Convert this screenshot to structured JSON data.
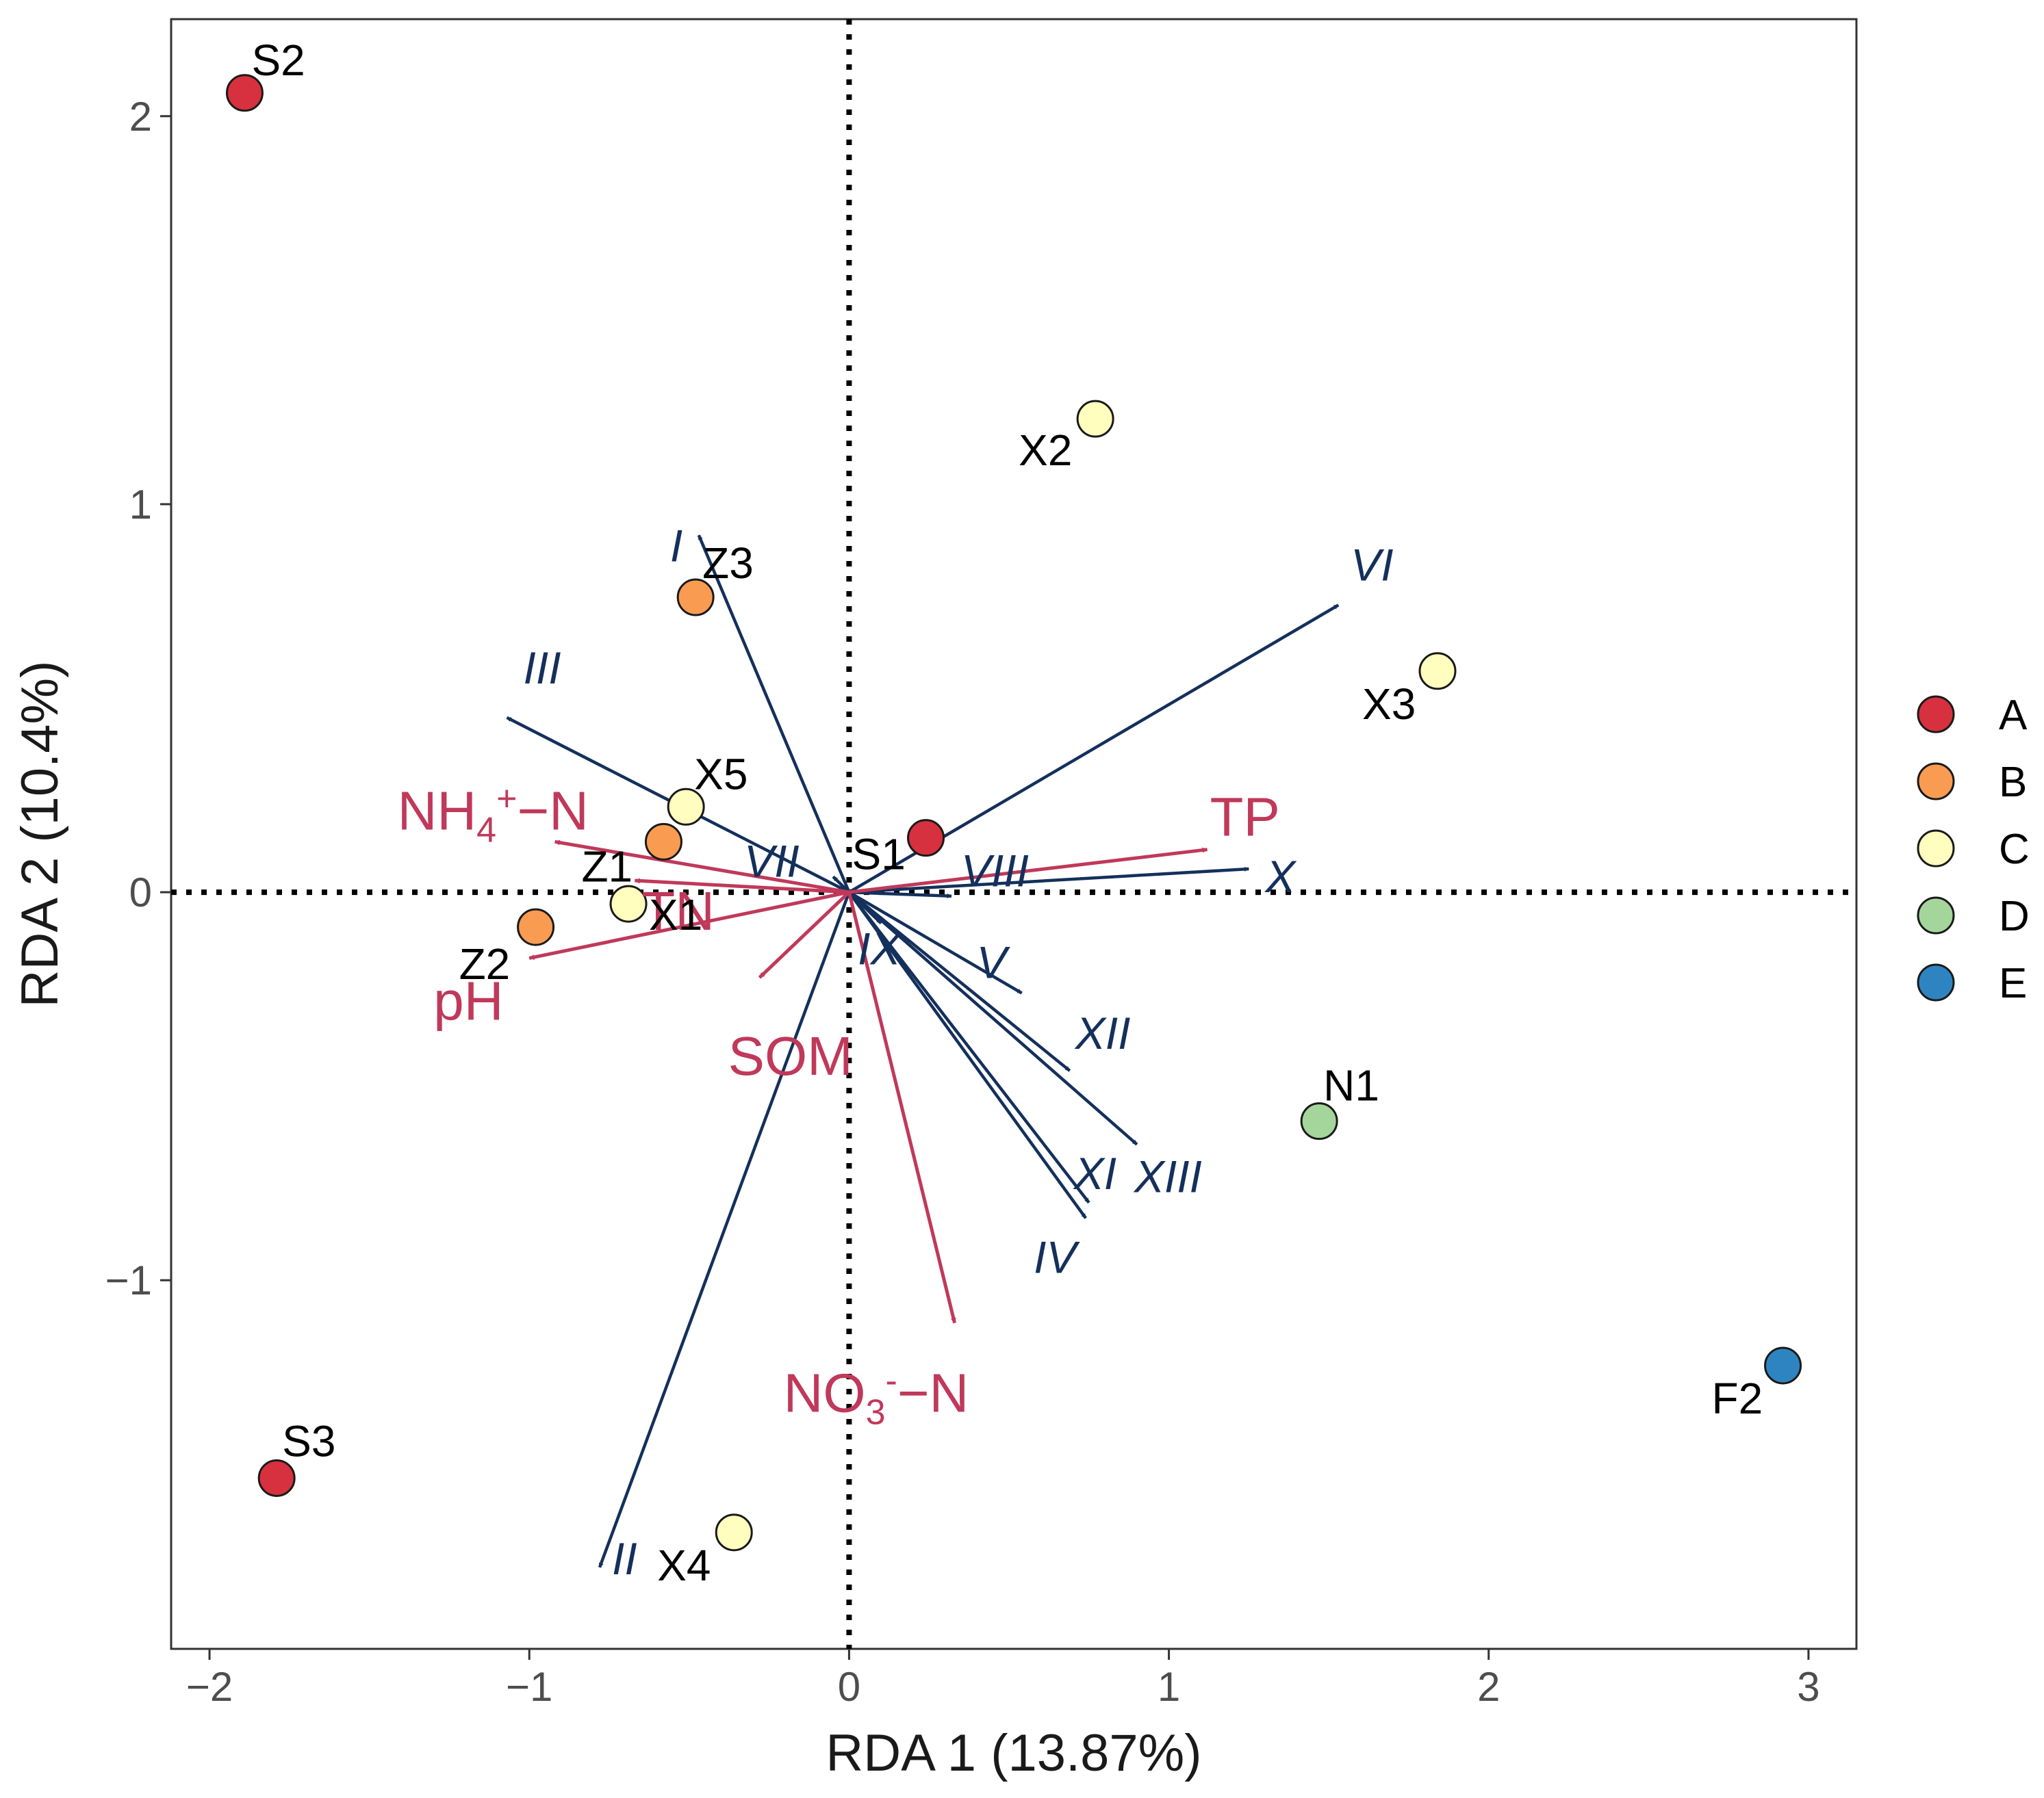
{
  "chart_data": {
    "type": "scatter",
    "subtype": "RDA biplot",
    "xlabel": "RDA 1 (13.87%)",
    "ylabel": "RDA 2 (10.4%)",
    "xlim": [
      -2.12,
      3.15
    ],
    "ylim": [
      -1.95,
      2.25
    ],
    "x_ticks": [
      {
        "value": -2,
        "label": "−2"
      },
      {
        "value": -1,
        "label": "−1"
      },
      {
        "value": 0,
        "label": "0"
      },
      {
        "value": 1,
        "label": "1"
      },
      {
        "value": 2,
        "label": "2"
      },
      {
        "value": 3,
        "label": "3"
      }
    ],
    "y_ticks": [
      {
        "value": -1,
        "label": "−1"
      },
      {
        "value": 0,
        "label": "0"
      },
      {
        "value": 1,
        "label": "1"
      },
      {
        "value": 2,
        "label": "2"
      }
    ],
    "zero_lines": "dotted",
    "grid": false,
    "legend_position": "right",
    "groups": [
      {
        "name": "A",
        "color": "#d7303f"
      },
      {
        "name": "B",
        "color": "#f99c52"
      },
      {
        "name": "C",
        "color": "#fffebe"
      },
      {
        "name": "D",
        "color": "#a4d69c"
      },
      {
        "name": "E",
        "color": "#2e84c0"
      }
    ],
    "sites": [
      {
        "label": "S2",
        "x": -1.89,
        "y": 2.06,
        "group": "A"
      },
      {
        "label": "S3",
        "x": -1.79,
        "y": -1.51,
        "group": "A"
      },
      {
        "label": "S1",
        "x": 0.24,
        "y": 0.14,
        "group": "A"
      },
      {
        "label": "Z3",
        "x": -0.48,
        "y": 0.76,
        "group": "B"
      },
      {
        "label": "Z1",
        "x": -0.58,
        "y": 0.13,
        "group": "B"
      },
      {
        "label": "Z2",
        "x": -0.98,
        "y": -0.09,
        "group": "B"
      },
      {
        "label": "X2",
        "x": 0.77,
        "y": 1.22,
        "group": "C"
      },
      {
        "label": "X3",
        "x": 1.84,
        "y": 0.57,
        "group": "C"
      },
      {
        "label": "X5",
        "x": -0.51,
        "y": 0.22,
        "group": "C"
      },
      {
        "label": "X1",
        "x": -0.69,
        "y": -0.03,
        "group": "C"
      },
      {
        "label": "X4",
        "x": -0.36,
        "y": -1.65,
        "group": "C"
      },
      {
        "label": "N1",
        "x": 1.47,
        "y": -0.59,
        "group": "D"
      },
      {
        "label": "F2",
        "x": 2.92,
        "y": -1.22,
        "group": "E"
      }
    ],
    "env_vectors": [
      {
        "label": "TP",
        "x": 1.12,
        "y": 0.11
      },
      {
        "label": "NH4+−N",
        "x": -0.92,
        "y": 0.13
      },
      {
        "label": "TN",
        "x": -0.67,
        "y": 0.03
      },
      {
        "label": "pH",
        "x": -1.0,
        "y": -0.17
      },
      {
        "label": "SOM",
        "x": -0.28,
        "y": -0.22
      },
      {
        "label": "NO3-−N",
        "x": 0.33,
        "y": -1.11
      }
    ],
    "taxa_vectors": [
      {
        "label": "I",
        "x": -0.47,
        "y": 0.92
      },
      {
        "label": "II",
        "x": -0.78,
        "y": -1.74
      },
      {
        "label": "III",
        "x": -1.07,
        "y": 0.45
      },
      {
        "label": "IV",
        "x": 0.74,
        "y": -0.84
      },
      {
        "label": "V",
        "x": 0.54,
        "y": -0.26
      },
      {
        "label": "VI",
        "x": 1.53,
        "y": 0.74
      },
      {
        "label": "VII",
        "x": -0.05,
        "y": 0.04
      },
      {
        "label": "VIII",
        "x": 0.32,
        "y": -0.01
      },
      {
        "label": "IX",
        "x": 0.1,
        "y": -0.08
      },
      {
        "label": "X",
        "x": 1.25,
        "y": 0.06
      },
      {
        "label": "XI",
        "x": 0.75,
        "y": -0.8
      },
      {
        "label": "XII",
        "x": 0.69,
        "y": -0.46
      },
      {
        "label": "XIII",
        "x": 0.9,
        "y": -0.65
      }
    ]
  }
}
